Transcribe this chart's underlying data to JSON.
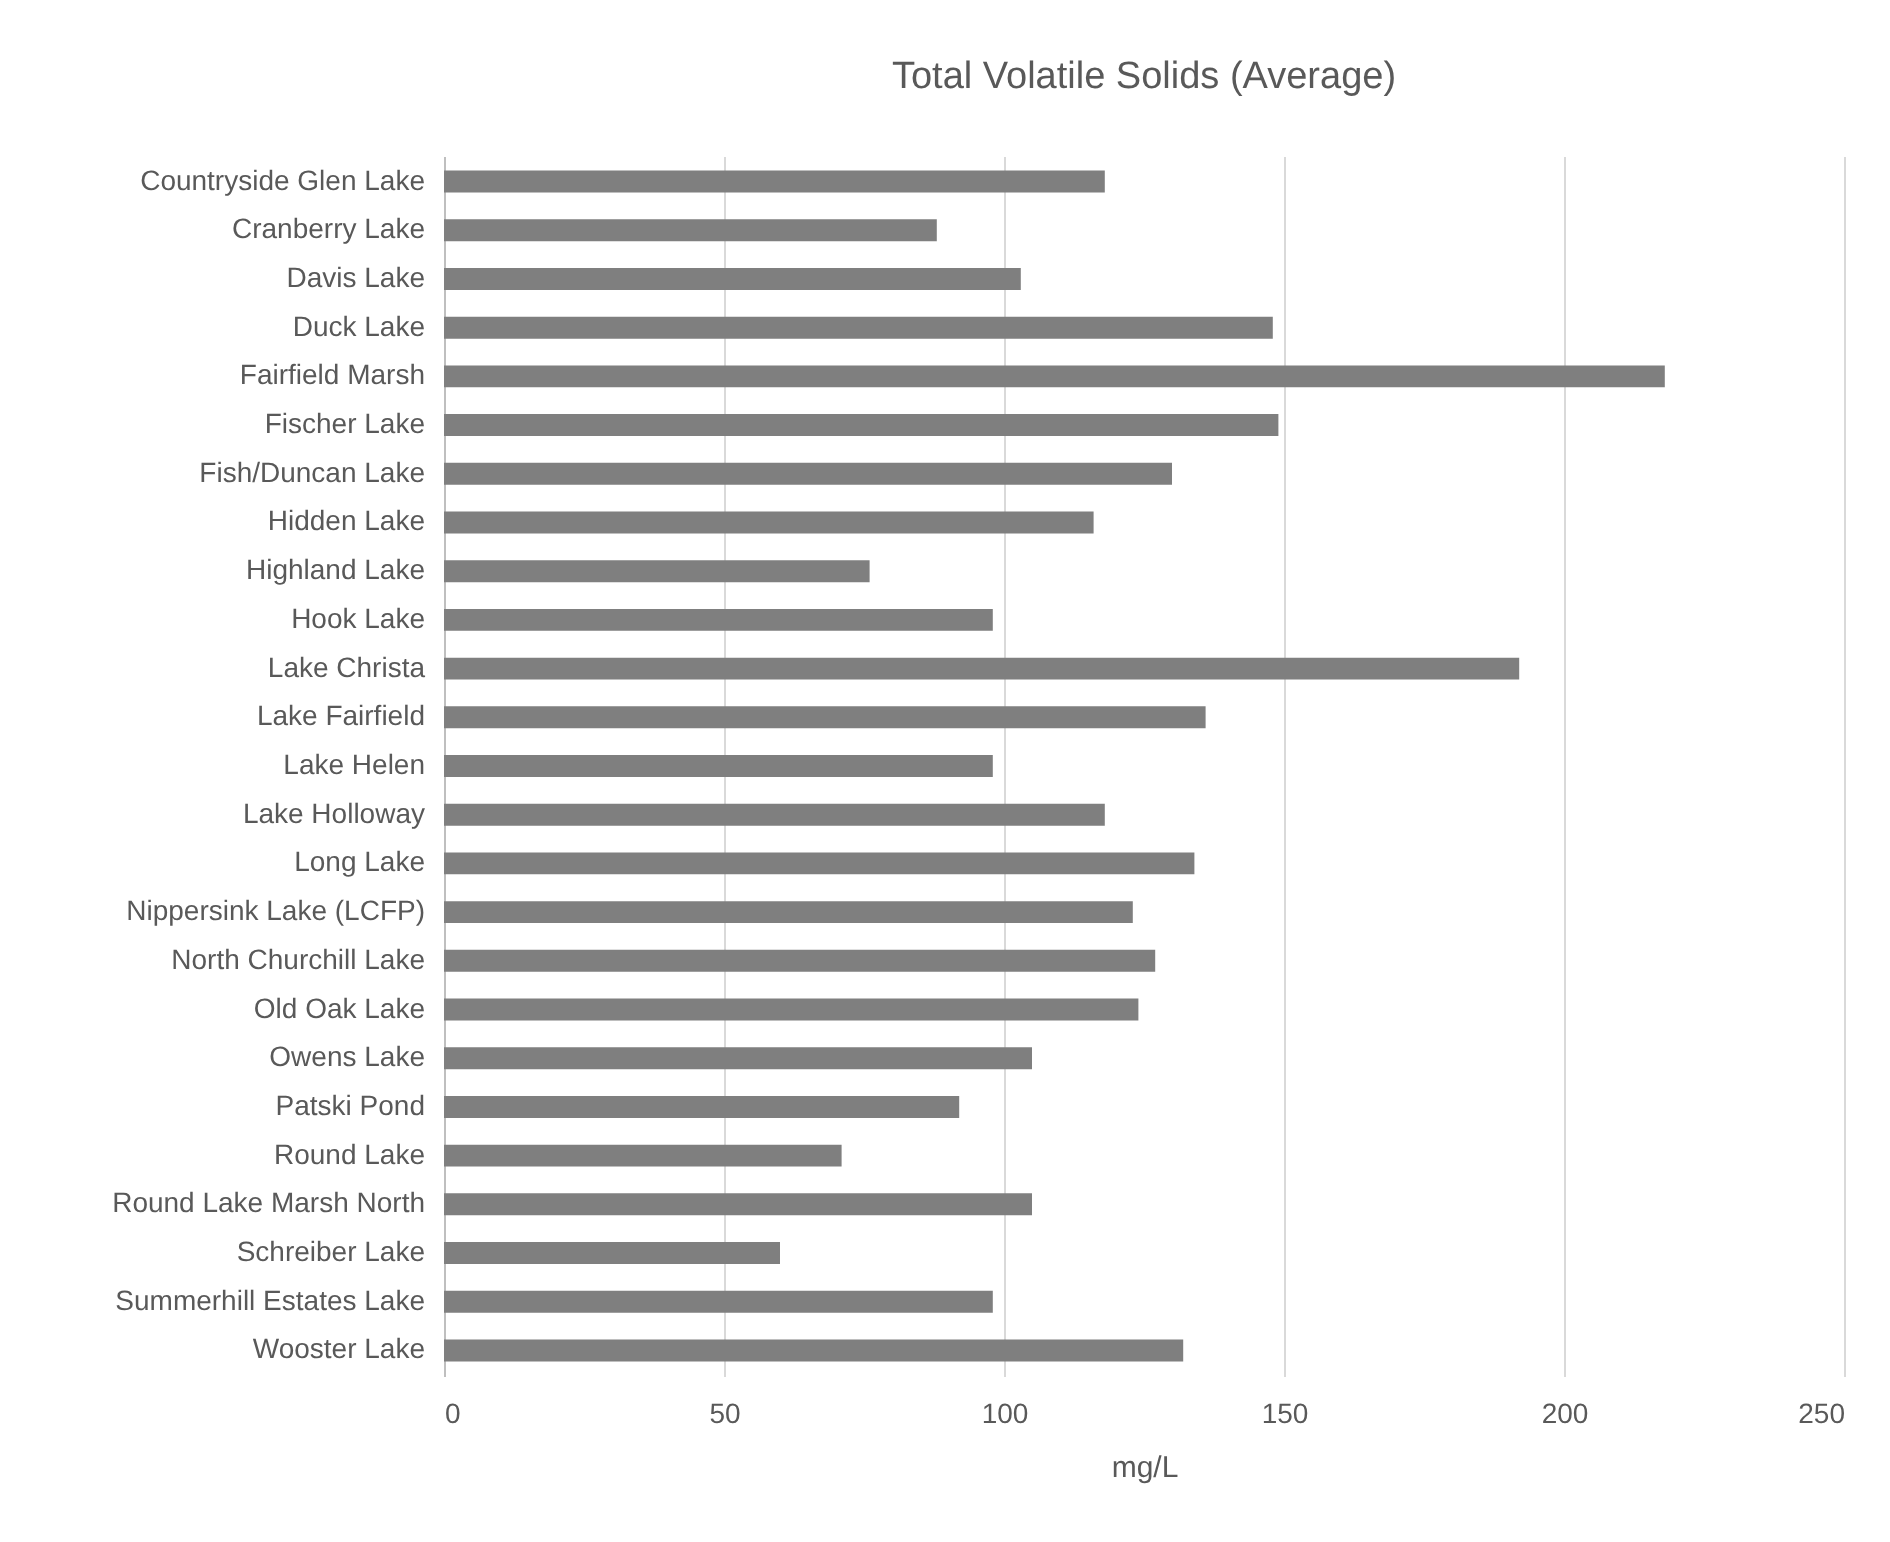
{
  "chart_data": {
    "type": "bar",
    "orientation": "horizontal",
    "title": "Total Volatile Solids (Average)",
    "xlabel": "mg/L",
    "categories": [
      "Countryside Glen Lake",
      "Cranberry Lake",
      "Davis Lake",
      "Duck Lake",
      "Fairfield Marsh",
      "Fischer Lake",
      "Fish/Duncan Lake",
      "Hidden Lake",
      "Highland Lake",
      "Hook Lake",
      "Lake Christa",
      "Lake Fairfield",
      "Lake Helen",
      "Lake Holloway",
      "Long Lake",
      "Nippersink Lake (LCFP)",
      "North Churchill Lake",
      "Old Oak Lake",
      "Owens Lake",
      "Patski Pond",
      "Round Lake",
      "Round Lake Marsh North",
      "Schreiber Lake",
      "Summerhill Estates Lake",
      "Wooster Lake"
    ],
    "values": [
      118,
      88,
      103,
      148,
      218,
      149,
      130,
      116,
      76,
      98,
      192,
      136,
      98,
      118,
      134,
      123,
      127,
      124,
      105,
      92,
      71,
      105,
      60,
      98,
      132
    ],
    "color": "#7f7f7f",
    "xlim": [
      0,
      250
    ],
    "xticks": [
      0,
      50,
      100,
      150,
      200,
      250
    ],
    "grid": "x"
  }
}
